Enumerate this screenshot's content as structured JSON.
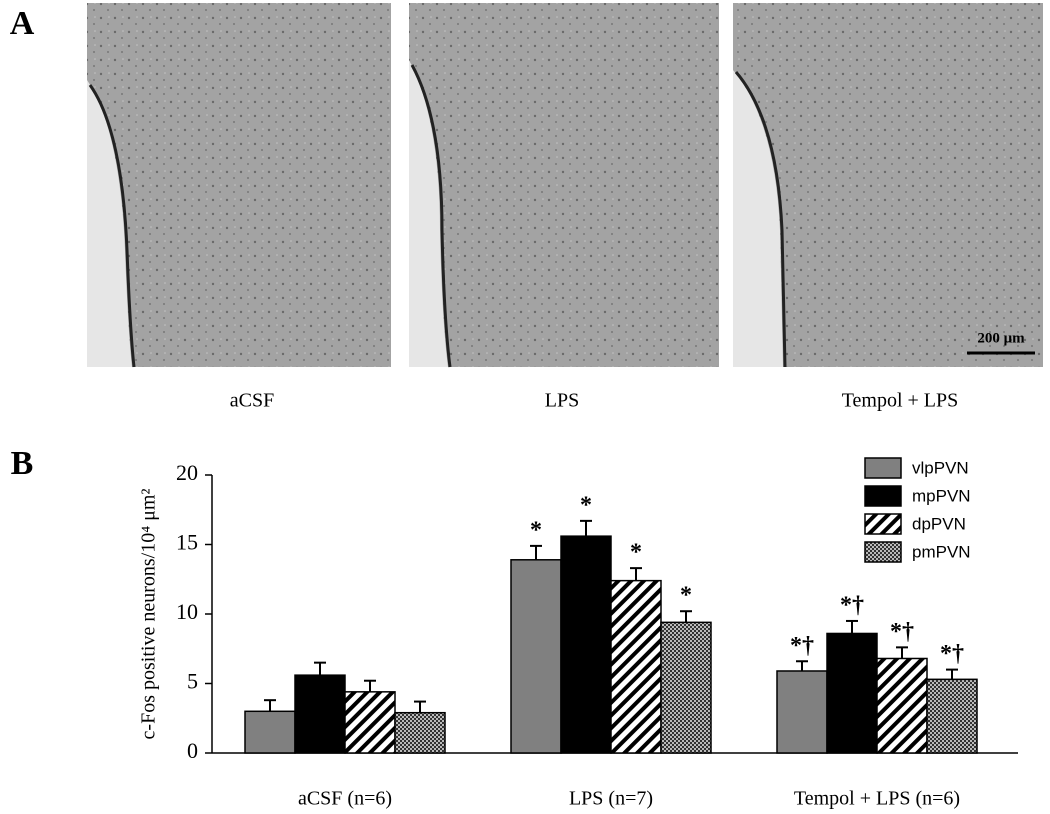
{
  "panel_labels": [
    "A",
    "B"
  ],
  "micrographs": {
    "labels": [
      "aCSF",
      "LPS",
      "Tempol + LPS"
    ],
    "scale_bar": "200 μm"
  },
  "chart_data": {
    "type": "bar",
    "ylabel": "c-Fos  positive neurons/10⁴ μm²",
    "categories": [
      "aCSF (n=6)",
      "LPS (n=7)",
      "Tempol + LPS (n=6)"
    ],
    "ylim": [
      0,
      20
    ],
    "yticks": [
      0,
      5,
      10,
      15,
      20
    ],
    "grid": false,
    "legend": "upper right",
    "series": [
      {
        "name": "vlpPVN",
        "color": "#808080",
        "pattern": "solid",
        "values": [
          3.0,
          13.9,
          5.9
        ],
        "errors": [
          0.8,
          1.0,
          0.7
        ],
        "annotations": [
          null,
          "*",
          "*†"
        ]
      },
      {
        "name": "mpPVN",
        "color": "#000000",
        "pattern": "solid",
        "values": [
          5.6,
          15.6,
          8.6
        ],
        "errors": [
          0.9,
          1.1,
          0.9
        ],
        "annotations": [
          null,
          "*",
          "*†"
        ]
      },
      {
        "name": "dpPVN",
        "color": "#000000",
        "pattern": "hatch",
        "values": [
          4.4,
          12.4,
          6.8
        ],
        "errors": [
          0.8,
          0.9,
          0.8
        ],
        "annotations": [
          null,
          "*",
          "*†"
        ]
      },
      {
        "name": "pmPVN",
        "color": "#555555",
        "pattern": "crosshatch",
        "values": [
          2.9,
          9.4,
          5.3
        ],
        "errors": [
          0.8,
          0.8,
          0.7
        ],
        "annotations": [
          null,
          "*",
          "*†"
        ]
      }
    ]
  }
}
